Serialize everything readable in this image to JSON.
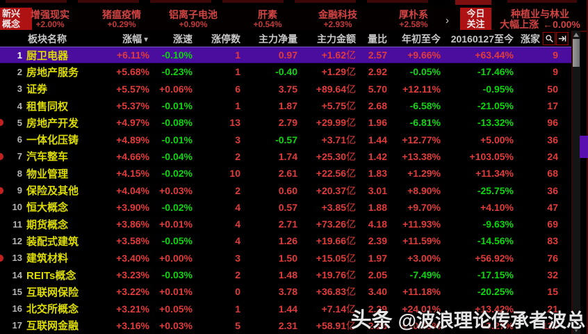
{
  "hot_bar": {
    "new_concept_tab": {
      "line1": "新兴",
      "line2": "概念"
    },
    "items": [
      {
        "name": "增强现实",
        "change": "+2.00%"
      },
      {
        "name": "猪瘟疫情",
        "change": "+0.29%"
      },
      {
        "name": "铝离子电池",
        "change": "+0.90%"
      },
      {
        "name": "肝素",
        "change": "+0.54%"
      },
      {
        "name": "金融科技",
        "change": "+2.93%"
      },
      {
        "name": "厚朴系",
        "change": "+2.58%"
      }
    ],
    "expand_arrow": "›",
    "today_tab": {
      "line1": "今日",
      "line2": "关注"
    },
    "focus": {
      "name": "种植业与林业",
      "status": "大幅上涨",
      "change": "←0.00%"
    }
  },
  "table": {
    "headers": {
      "name": "板块名称",
      "change": "涨幅",
      "speed": "涨速",
      "limit_up": "涨停数",
      "main_net": "主力净量",
      "main_amount": "主力金额",
      "vol_ratio": "量比",
      "ytd": "年初至今",
      "since_date": "20160127至今",
      "up_count": "涨家"
    },
    "sort_arrow": "▼",
    "money_unit": "亿",
    "rows": [
      {
        "idx": "1",
        "name": "厨卫电器",
        "change": "+6.11%",
        "speed": "-0.10%",
        "limit_up": "1",
        "main_net": "0.97",
        "main_amount": "+1.62",
        "vol_ratio": "2.57",
        "ytd": "+9.66%",
        "since": "+63.44%",
        "up_count": "9",
        "selected": true
      },
      {
        "idx": "2",
        "name": "房地产服务",
        "change": "+5.68%",
        "speed": "-0.23%",
        "limit_up": "1",
        "main_net": "-0.40",
        "main_amount": "+1.29",
        "vol_ratio": "2.92",
        "ytd": "-0.05%",
        "since": "-17.46%",
        "up_count": "9"
      },
      {
        "idx": "3",
        "name": "证券",
        "change": "+5.57%",
        "speed": "+0.06%",
        "limit_up": "6",
        "main_net": "3.75",
        "main_amount": "+89.64",
        "vol_ratio": "5.70",
        "ytd": "+12.11%",
        "since": "-0.95%",
        "up_count": "50"
      },
      {
        "idx": "4",
        "name": "租售同权",
        "change": "+5.37%",
        "speed": "-0.01%",
        "limit_up": "1",
        "main_net": "1.87",
        "main_amount": "+5.75",
        "vol_ratio": "2.68",
        "ytd": "-6.58%",
        "since": "-21.05%",
        "up_count": "17"
      },
      {
        "idx": "5",
        "name": "房地产开发",
        "change": "+4.97%",
        "speed": "-0.08%",
        "limit_up": "13",
        "main_net": "2.79",
        "main_amount": "+29.99",
        "vol_ratio": "1.96",
        "ytd": "-6.81%",
        "since": "-13.32%",
        "up_count": "96",
        "marker": true
      },
      {
        "idx": "6",
        "name": "一体化压铸",
        "change": "+4.89%",
        "speed": "-0.01%",
        "limit_up": "3",
        "main_net": "-0.57",
        "main_amount": "+3.71",
        "vol_ratio": "1.44",
        "ytd": "+12.77%",
        "since": "+5.00%",
        "up_count": "36"
      },
      {
        "idx": "7",
        "name": "汽车整车",
        "change": "+4.66%",
        "speed": "-0.04%",
        "limit_up": "2",
        "main_net": "1.74",
        "main_amount": "+25.30",
        "vol_ratio": "1.42",
        "ytd": "+13.38%",
        "since": "+103.05%",
        "up_count": "24",
        "marker": true
      },
      {
        "idx": "8",
        "name": "物业管理",
        "change": "+4.15%",
        "speed": "-0.02%",
        "limit_up": "10",
        "main_net": "2.61",
        "main_amount": "+22.56",
        "vol_ratio": "1.83",
        "ytd": "+1.29%",
        "since": "+11.34%",
        "up_count": "68"
      },
      {
        "idx": "9",
        "name": "保险及其他",
        "change": "+4.04%",
        "speed": "+0.03%",
        "limit_up": "2",
        "main_net": "0.60",
        "main_amount": "+20.37",
        "vol_ratio": "3.01",
        "ytd": "+8.90%",
        "since": "-25.75%",
        "up_count": "36",
        "marker": true
      },
      {
        "idx": "10",
        "name": "恒大概念",
        "change": "+3.90%",
        "speed": "-0.02%",
        "limit_up": "4",
        "main_net": "0.57",
        "main_amount": "+3.85",
        "vol_ratio": "1.88",
        "ytd": "+9.70%",
        "since": "+4.10%",
        "up_count": "47"
      },
      {
        "idx": "11",
        "name": "期货概念",
        "change": "+3.86%",
        "speed": "+0.01%",
        "limit_up": "4",
        "main_net": "2.71",
        "main_amount": "+73.26",
        "vol_ratio": "4.18",
        "ytd": "+11.93%",
        "since": "-9.63%",
        "up_count": "69"
      },
      {
        "idx": "12",
        "name": "装配式建筑",
        "change": "+3.58%",
        "speed": "-0.05%",
        "limit_up": "4",
        "main_net": "1.26",
        "main_amount": "+19.66",
        "vol_ratio": "2.39",
        "ytd": "+11.59%",
        "since": "-14.56%",
        "up_count": "83"
      },
      {
        "idx": "13",
        "name": "建筑材料",
        "change": "+3.40%",
        "speed": "+0.00%",
        "limit_up": "3",
        "main_net": "1.50",
        "main_amount": "+15.05",
        "vol_ratio": "1.97",
        "ytd": "+3.00%",
        "since": "+56.92%",
        "up_count": "76",
        "marker": true
      },
      {
        "idx": "14",
        "name": "REITs概念",
        "change": "+3.23%",
        "speed": "-0.03%",
        "limit_up": "2",
        "main_net": "1.48",
        "main_amount": "+19.76",
        "vol_ratio": "2.05",
        "ytd": "-7.49%",
        "since": "-17.15%",
        "up_count": "32"
      },
      {
        "idx": "15",
        "name": "互联网保险",
        "change": "+3.22%",
        "speed": "+0.01%",
        "limit_up": "0",
        "main_net": "3.78",
        "main_amount": "+36.83",
        "vol_ratio": "3.40",
        "ytd": "+11.18%",
        "since": "-20.25%",
        "up_count": "15"
      },
      {
        "idx": "16",
        "name": "北交所概念",
        "change": "+3.21%",
        "speed": "+0.05%",
        "limit_up": "1",
        "main_net": "1.44",
        "main_amount": "+7.14",
        "vol_ratio": "2.29",
        "ytd": "+24.01%",
        "since": "+13.42%",
        "up_count": "21"
      },
      {
        "idx": "17",
        "name": "互联网金融",
        "change": "+3.16%",
        "speed": "+0.03%",
        "limit_up": "5",
        "main_net": "2.31",
        "main_amount": "+58.91",
        "vol_ratio": "2.23",
        "ytd": "+10.78%",
        "since": "+3.27%",
        "up_count": "115"
      }
    ]
  },
  "watermark": {
    "badge": "头条",
    "handle": "@波浪理论传承者波总"
  },
  "colors": {
    "up": "#e13b3b",
    "down": "#0ed60e",
    "sector_name": "#dcdc00",
    "selected_row": "#4a0d9e",
    "accent_red": "#ae1212"
  }
}
